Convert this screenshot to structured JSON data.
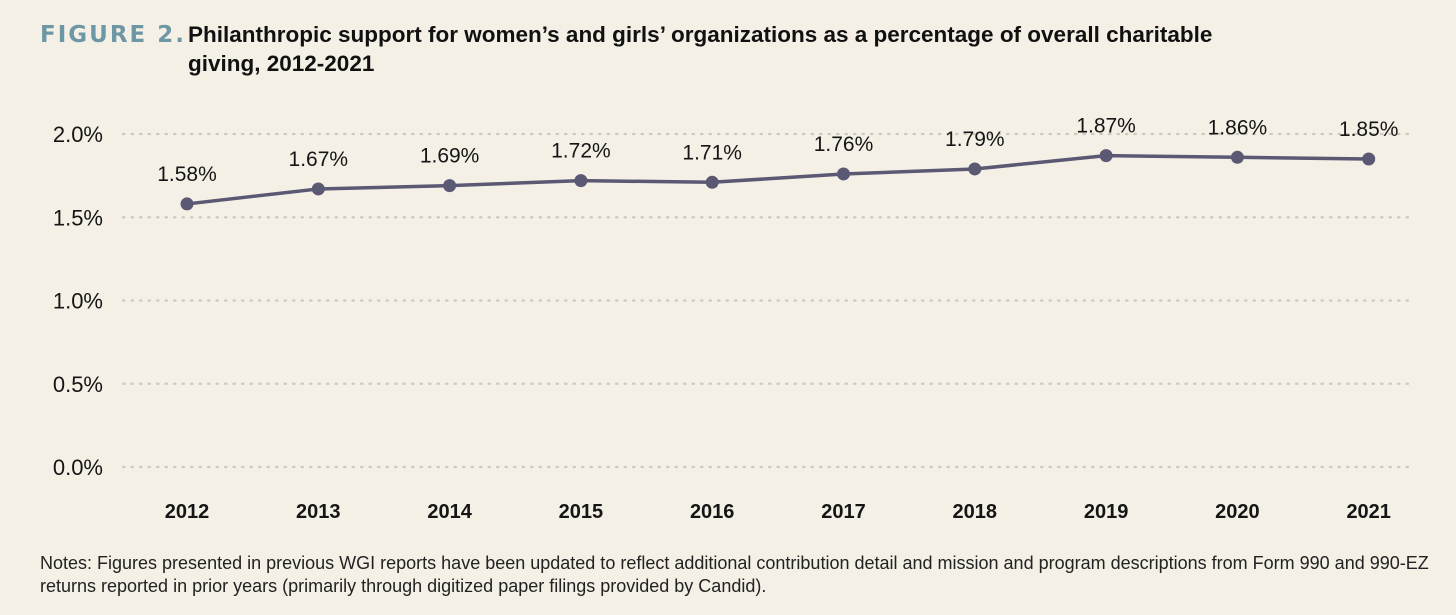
{
  "figure": {
    "label": "FIGURE 2.",
    "title": "Philanthropic support for women’s and girls’ organizations as a percentage of overall charitable giving, 2012-2021"
  },
  "chart_data": {
    "type": "line",
    "title": "Philanthropic support for women’s and girls’ organizations as a percentage of overall charitable giving, 2012-2021",
    "xlabel": "",
    "ylabel": "",
    "categories": [
      "2012",
      "2013",
      "2014",
      "2015",
      "2016",
      "2017",
      "2018",
      "2019",
      "2020",
      "2021"
    ],
    "values": [
      1.58,
      1.67,
      1.69,
      1.72,
      1.71,
      1.76,
      1.79,
      1.87,
      1.86,
      1.85
    ],
    "data_labels": [
      "1.58%",
      "1.67%",
      "1.69%",
      "1.72%",
      "1.71%",
      "1.76%",
      "1.79%",
      "1.87%",
      "1.86%",
      "1.85%"
    ],
    "yticks": [
      0.0,
      0.5,
      1.0,
      1.5,
      2.0
    ],
    "ytick_labels": [
      "0.0%",
      "0.5%",
      "1.0%",
      "1.5%",
      "2.0%"
    ],
    "ylim": [
      0,
      2.0
    ],
    "grid": "horizontal dotted",
    "legend": "none",
    "colors": {
      "line": "#5a5872",
      "grid": "#cdc9bc",
      "label_accent": "#6e97a6"
    }
  },
  "notes": "Notes: Figures presented in previous WGI reports have been updated to reflect additional contribution detail and mission and program descriptions from Form 990 and 990-EZ returns reported in prior years (primarily through digitized paper filings provided by Candid)."
}
